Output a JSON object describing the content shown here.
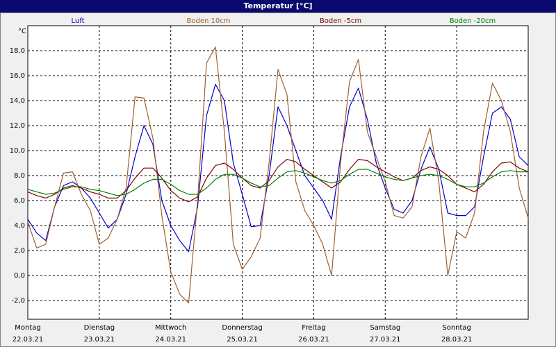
{
  "chart_data": {
    "type": "line",
    "title": "Temperatur [°C]",
    "y_unit": "°C",
    "grid": true,
    "legend": "top",
    "xlim": [
      0,
      7
    ],
    "ylim": [
      -3.5,
      20
    ],
    "xticks": [
      {
        "value": 0,
        "label": "Montag",
        "date": "22.03.21"
      },
      {
        "value": 1,
        "label": "Dienstag",
        "date": "23.03.21"
      },
      {
        "value": 2,
        "label": "Mittwoch",
        "date": "24.03.21"
      },
      {
        "value": 3,
        "label": "Donnerstag",
        "date": "25.03.21"
      },
      {
        "value": 4,
        "label": "Freitag",
        "date": "26.03.21"
      },
      {
        "value": 5,
        "label": "Samstag",
        "date": "27.03.21"
      },
      {
        "value": 6,
        "label": "Sonntag",
        "date": "28.03.21"
      }
    ],
    "yticks": [
      {
        "value": -2,
        "label": "-2,0"
      },
      {
        "value": 0,
        "label": "0,0"
      },
      {
        "value": 2,
        "label": "2,0"
      },
      {
        "value": 4,
        "label": "4,0"
      },
      {
        "value": 6,
        "label": "6,0"
      },
      {
        "value": 8,
        "label": "8,0"
      },
      {
        "value": 10,
        "label": "10,0"
      },
      {
        "value": 12,
        "label": "12,0"
      },
      {
        "value": 14,
        "label": "14,0"
      },
      {
        "value": 16,
        "label": "16,0"
      },
      {
        "value": 18,
        "label": "18,0"
      }
    ],
    "x": [
      0,
      0.125,
      0.25,
      0.375,
      0.5,
      0.625,
      0.75,
      0.875,
      1,
      1.125,
      1.25,
      1.375,
      1.5,
      1.625,
      1.75,
      1.875,
      2,
      2.125,
      2.25,
      2.375,
      2.5,
      2.625,
      2.75,
      2.875,
      3,
      3.125,
      3.25,
      3.375,
      3.5,
      3.625,
      3.75,
      3.875,
      4,
      4.125,
      4.25,
      4.375,
      4.5,
      4.625,
      4.75,
      4.875,
      5,
      5.125,
      5.25,
      5.375,
      5.5,
      5.625,
      5.75,
      5.875,
      6,
      6.125,
      6.25,
      6.375,
      6.5,
      6.625,
      6.75,
      6.875,
      7
    ],
    "series": [
      {
        "name": "Luft",
        "color": "#0000cc",
        "values": [
          4.5,
          3.4,
          2.8,
          5.5,
          7.2,
          7.5,
          7.0,
          6.2,
          5.0,
          3.8,
          4.5,
          6.5,
          9.5,
          12.0,
          10.5,
          6.0,
          4.0,
          2.8,
          1.9,
          5.5,
          12.8,
          15.3,
          14.0,
          9.0,
          6.5,
          3.9,
          4.0,
          8.0,
          13.5,
          12.0,
          10.0,
          8.0,
          7.0,
          6.0,
          4.5,
          9.5,
          13.5,
          15.0,
          12.5,
          9.0,
          7.0,
          5.3,
          5.0,
          6.0,
          8.5,
          10.3,
          8.5,
          5.0,
          4.8,
          4.8,
          5.5,
          9.5,
          13.0,
          13.5,
          12.5,
          9.5,
          8.8
        ]
      },
      {
        "name": "Boden 10cm",
        "color": "#a0602a",
        "values": [
          4.3,
          2.2,
          2.5,
          5.5,
          8.2,
          8.3,
          6.5,
          5.2,
          2.5,
          3.0,
          4.5,
          7.0,
          14.3,
          14.2,
          11.0,
          4.8,
          0.3,
          -1.5,
          -2.2,
          6.0,
          17.0,
          18.3,
          11.5,
          2.5,
          0.5,
          1.5,
          3.0,
          9.0,
          16.5,
          14.5,
          7.5,
          5.2,
          4.0,
          2.5,
          0.0,
          9.0,
          15.5,
          17.3,
          11.5,
          9.5,
          7.5,
          4.8,
          4.6,
          5.5,
          9.5,
          11.8,
          7.5,
          0.0,
          3.5,
          3.0,
          5.0,
          11.5,
          15.4,
          14.0,
          11.5,
          7.0,
          4.6
        ]
      },
      {
        "name": "Boden -5cm",
        "color": "#800000",
        "values": [
          6.7,
          6.4,
          6.2,
          6.5,
          7.0,
          7.2,
          7.0,
          6.7,
          6.5,
          6.2,
          6.2,
          6.8,
          7.8,
          8.6,
          8.6,
          7.8,
          6.8,
          6.2,
          5.9,
          6.3,
          7.8,
          8.8,
          9.0,
          8.5,
          7.8,
          7.2,
          7.0,
          7.6,
          8.7,
          9.3,
          9.1,
          8.5,
          8.0,
          7.5,
          7.0,
          7.5,
          8.5,
          9.3,
          9.2,
          8.7,
          8.3,
          7.9,
          7.6,
          7.8,
          8.4,
          8.7,
          8.5,
          8.0,
          7.3,
          7.0,
          6.7,
          7.3,
          8.3,
          9.0,
          9.1,
          8.6,
          8.3
        ]
      },
      {
        "name": "Boden -20cm",
        "color": "#008000",
        "values": [
          6.9,
          6.7,
          6.5,
          6.6,
          6.9,
          7.1,
          7.1,
          6.9,
          6.8,
          6.6,
          6.4,
          6.5,
          6.9,
          7.4,
          7.7,
          7.7,
          7.3,
          6.8,
          6.5,
          6.5,
          7.0,
          7.7,
          8.1,
          8.1,
          7.8,
          7.4,
          7.1,
          7.2,
          7.8,
          8.3,
          8.4,
          8.2,
          7.9,
          7.6,
          7.4,
          7.6,
          8.1,
          8.5,
          8.5,
          8.2,
          7.9,
          7.7,
          7.6,
          7.8,
          8.0,
          8.1,
          8.0,
          7.7,
          7.3,
          7.1,
          7.1,
          7.4,
          7.9,
          8.3,
          8.4,
          8.3,
          8.3
        ]
      }
    ]
  }
}
